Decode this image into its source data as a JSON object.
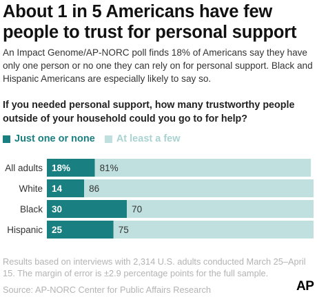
{
  "header": {
    "title": "About 1 in 5 Americans have few people to trust for personal support",
    "subtitle": "An Impact Genome/AP-NORC poll finds 18% of Americans say they have only one person or no one they can rely on for personal support. Black and Hispanic Americans are especially likely to say so."
  },
  "question": "If you needed personal support, how many trustworthy people outside of your household could you go to for help?",
  "colors": {
    "dark": "#1a7f80",
    "light": "#bfe0de"
  },
  "chart_data": {
    "type": "bar",
    "orientation": "horizontal",
    "stacked": true,
    "categories": [
      "All adults",
      "White",
      "Black",
      "Hispanic"
    ],
    "series": [
      {
        "name": "Just one or none",
        "values": [
          18,
          14,
          30,
          25
        ],
        "labels": [
          "18%",
          "14",
          "30",
          "25"
        ]
      },
      {
        "name": "At least a few",
        "values": [
          81,
          86,
          70,
          75
        ],
        "labels": [
          "81%",
          "86",
          "70",
          "75"
        ]
      }
    ],
    "xlim": [
      0,
      100
    ],
    "legend": "top-left",
    "grid": false
  },
  "footer": {
    "notes": "Results based on interviews with 2,314 U.S. adults conducted March 25–April 15. The margin of error is ±2.9 percentage points for the full sample.",
    "source": "Source: AP-NORC Center for Public Affairs Research",
    "logo": "AP"
  }
}
